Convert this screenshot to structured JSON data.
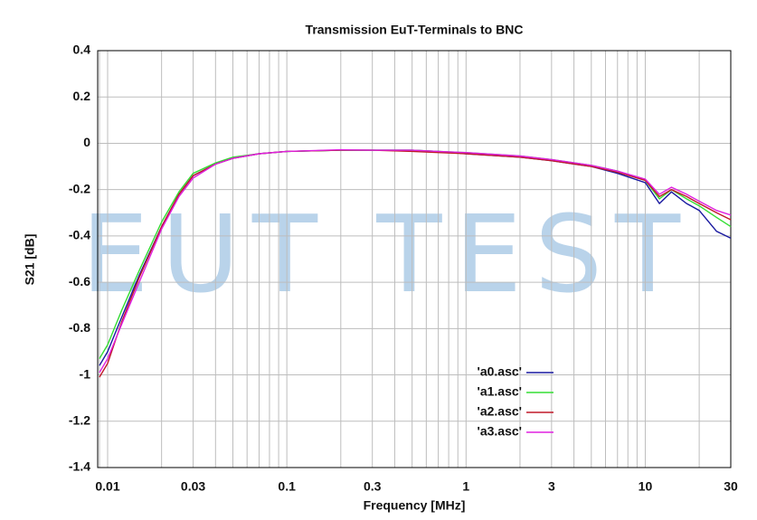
{
  "chart_data": {
    "type": "line",
    "title": "Transmission EuT-Terminals to BNC",
    "xlabel": "Frequency [MHz]",
    "ylabel": "S21 [dB]",
    "watermark": "EUT TEST",
    "x_scale": "log",
    "grid": true,
    "legend": "lower right",
    "xlim": [
      0.0088,
      30
    ],
    "xticks": [
      0.01,
      0.03,
      0.1,
      0.3,
      1,
      3,
      10,
      30
    ],
    "ylim": [
      -1.4,
      0.4
    ],
    "yticks": [
      0.4,
      0.2,
      0,
      -0.2,
      -0.4,
      -0.6,
      -0.8,
      -1,
      -1.2,
      -1.4
    ],
    "x": [
      0.009,
      0.01,
      0.012,
      0.015,
      0.02,
      0.025,
      0.03,
      0.04,
      0.05,
      0.07,
      0.1,
      0.2,
      0.3,
      0.5,
      0.7,
      1,
      2,
      3,
      5,
      7,
      10,
      12,
      14,
      17,
      20,
      25,
      30
    ],
    "series": [
      {
        "name": "'a0.asc'",
        "color": "#1a1aa0",
        "values": [
          -0.96,
          -0.9,
          -0.75,
          -0.57,
          -0.36,
          -0.22,
          -0.14,
          -0.09,
          -0.065,
          -0.045,
          -0.035,
          -0.03,
          -0.03,
          -0.03,
          -0.035,
          -0.045,
          -0.06,
          -0.075,
          -0.1,
          -0.13,
          -0.17,
          -0.26,
          -0.21,
          -0.26,
          -0.29,
          -0.38,
          -0.41
        ]
      },
      {
        "name": "'a1.asc'",
        "color": "#33dd33",
        "values": [
          -0.93,
          -0.87,
          -0.72,
          -0.55,
          -0.34,
          -0.21,
          -0.13,
          -0.085,
          -0.06,
          -0.045,
          -0.035,
          -0.03,
          -0.03,
          -0.03,
          -0.035,
          -0.04,
          -0.055,
          -0.07,
          -0.095,
          -0.12,
          -0.16,
          -0.24,
          -0.2,
          -0.24,
          -0.27,
          -0.32,
          -0.36
        ]
      },
      {
        "name": "'a2.asc'",
        "color": "#c01828",
        "values": [
          -1.01,
          -0.95,
          -0.77,
          -0.58,
          -0.36,
          -0.22,
          -0.14,
          -0.09,
          -0.065,
          -0.045,
          -0.035,
          -0.03,
          -0.03,
          -0.035,
          -0.04,
          -0.045,
          -0.06,
          -0.075,
          -0.1,
          -0.125,
          -0.16,
          -0.23,
          -0.2,
          -0.23,
          -0.26,
          -0.3,
          -0.33
        ]
      },
      {
        "name": "'a3.asc'",
        "color": "#e020e0",
        "values": [
          -0.99,
          -0.93,
          -0.78,
          -0.6,
          -0.37,
          -0.23,
          -0.15,
          -0.09,
          -0.065,
          -0.045,
          -0.035,
          -0.028,
          -0.03,
          -0.03,
          -0.035,
          -0.04,
          -0.055,
          -0.07,
          -0.095,
          -0.12,
          -0.155,
          -0.22,
          -0.19,
          -0.22,
          -0.25,
          -0.29,
          -0.31
        ]
      }
    ]
  }
}
